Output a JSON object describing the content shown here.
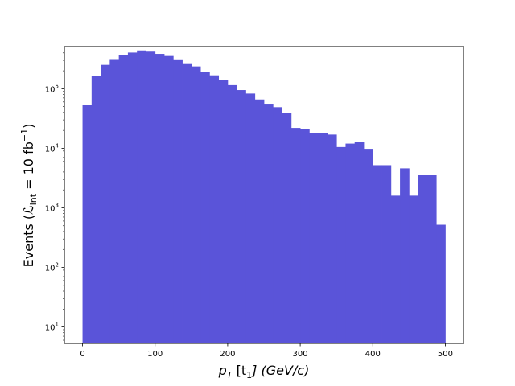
{
  "chart_data": {
    "type": "bar",
    "bar_color": "#5a54d9",
    "xlim": [
      -25,
      525
    ],
    "ylim": [
      5.3,
      510000
    ],
    "yscale": "log",
    "grid": false,
    "xticks": [
      0,
      100,
      200,
      300,
      400,
      500
    ],
    "xtick_labels": [
      "0",
      "100",
      "200",
      "300",
      "400",
      "500"
    ],
    "yticks": [
      10,
      100,
      1000,
      10000,
      100000
    ],
    "ytick_labels": [
      {
        "base": "10",
        "exp": "1"
      },
      {
        "base": "10",
        "exp": "2"
      },
      {
        "base": "10",
        "exp": "3"
      },
      {
        "base": "10",
        "exp": "4"
      },
      {
        "base": "10",
        "exp": "5"
      }
    ],
    "xlabel": {
      "p": "p",
      "sub": "T",
      "mid": " [t",
      "sub2": "1",
      "end": "] (GeV/c)"
    },
    "ylabel": {
      "pre": "Events (",
      "L": "ℒ",
      "sub": "int",
      "eq": " = 10 fb",
      "sup": "−1",
      "post": ")"
    },
    "bin_edges": [
      0,
      12.5,
      25,
      37.5,
      50,
      62.5,
      75,
      87.5,
      100,
      112.5,
      125,
      137.5,
      150,
      162.5,
      175,
      187.5,
      200,
      212.5,
      225,
      237.5,
      250,
      262.5,
      275,
      287.5,
      300,
      312.5,
      325,
      337.5,
      350,
      362.5,
      375,
      387.5,
      400,
      412.5,
      425,
      437.5,
      450,
      462.5,
      475,
      487.5,
      500
    ],
    "values": [
      53000,
      165000,
      252000,
      315000,
      365000,
      405000,
      440000,
      420000,
      385000,
      355000,
      312000,
      268000,
      237000,
      193000,
      168000,
      142000,
      115000,
      95000,
      83000,
      66000,
      56000,
      49000,
      39000,
      22000,
      21000,
      18000,
      18000,
      17000,
      10500,
      12000,
      13000,
      9800,
      5200,
      5200,
      1600,
      4600,
      1600,
      3600,
      3600,
      520
    ]
  }
}
